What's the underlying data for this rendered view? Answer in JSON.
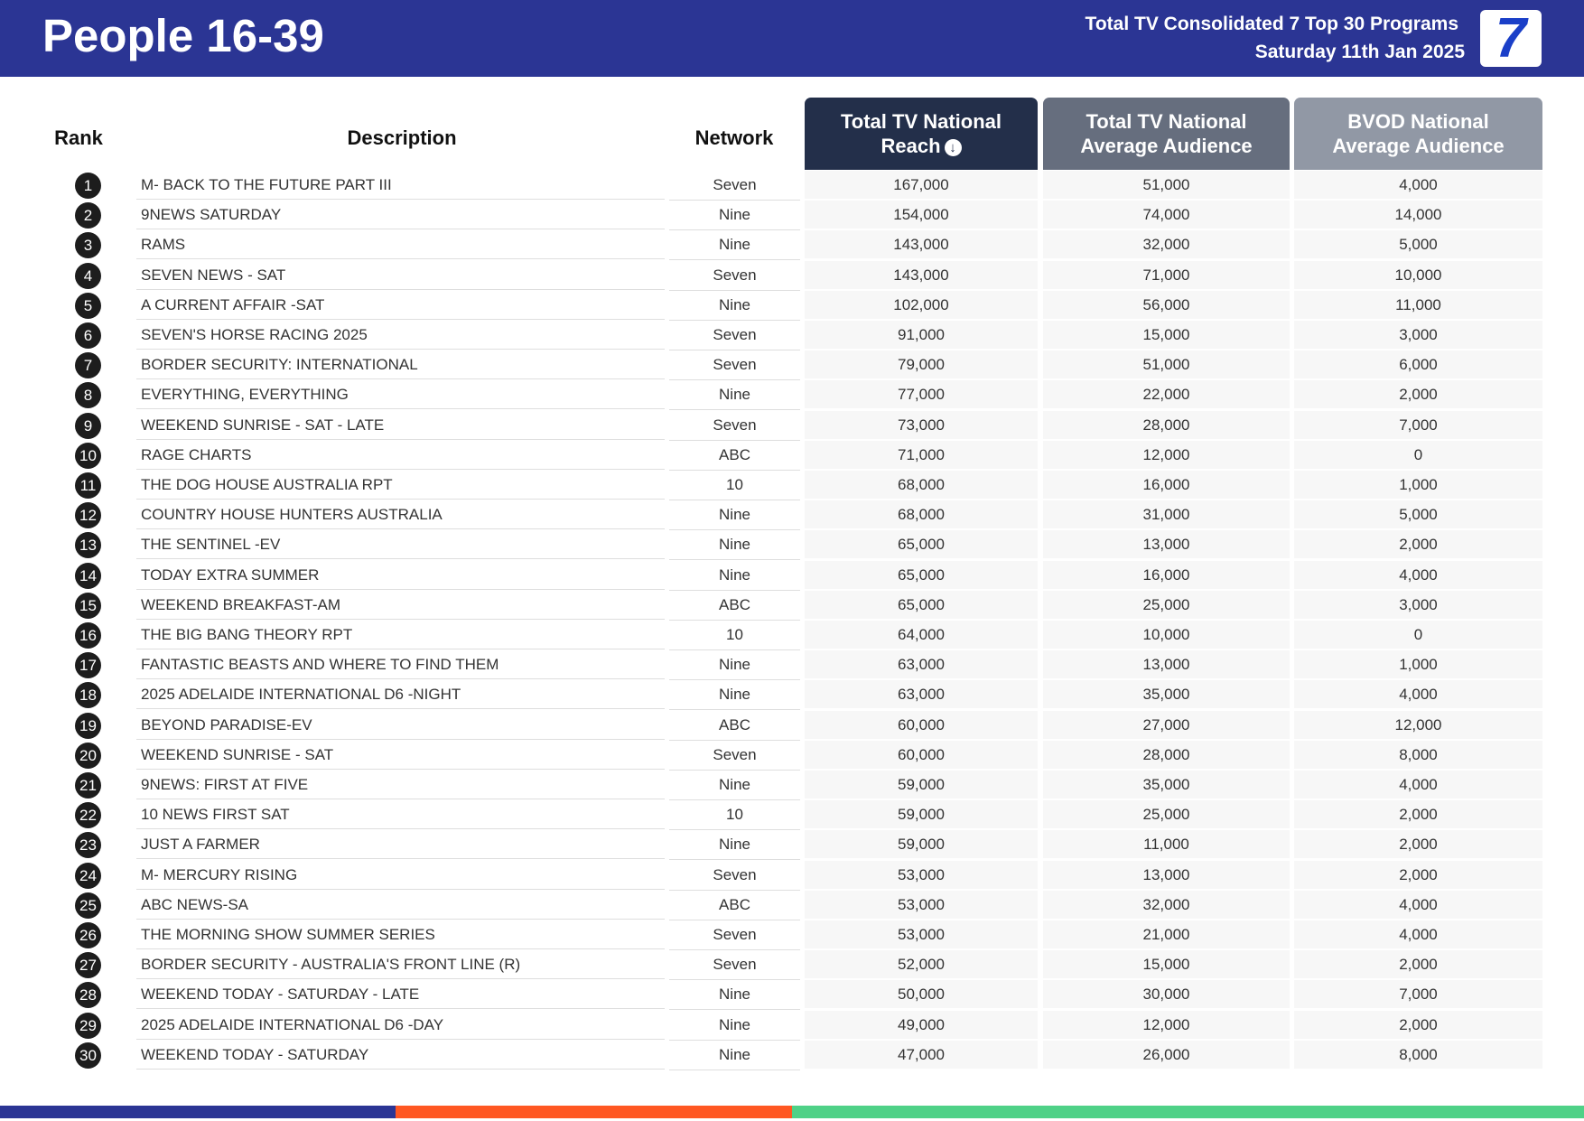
{
  "header": {
    "title": "People 16-39",
    "subtitle": "Total TV Consolidated 7 Top 30 Programs",
    "date": "Saturday 11th Jan 2025",
    "logo_text": "7"
  },
  "columns": {
    "rank": "Rank",
    "description": "Description",
    "network": "Network",
    "reach": "Total TV National Reach",
    "reach_line1": "Total TV National",
    "reach_line2": "Reach",
    "avg": "Total TV National Average Audience",
    "avg_line1": "Total TV National",
    "avg_line2": "Average Audience",
    "bvod_line1": "BVOD National",
    "bvod_line2": "Average Audience",
    "sort_icon": "arrow-down-circle-icon"
  },
  "colors": {
    "header_bg": "#2B3594",
    "reach_header": "#232F4A",
    "avg_header": "#666E7E",
    "bvod_header": "#9198A5",
    "footer_blue": "#2B3594",
    "footer_orange": "#FF5722",
    "footer_green": "#4FD187"
  },
  "rows": [
    {
      "rank": "1",
      "description": "M- BACK TO THE FUTURE PART III",
      "network": "Seven",
      "reach": "167,000",
      "avg": "51,000",
      "bvod": "4,000"
    },
    {
      "rank": "2",
      "description": "9NEWS SATURDAY",
      "network": "Nine",
      "reach": "154,000",
      "avg": "74,000",
      "bvod": "14,000"
    },
    {
      "rank": "3",
      "description": "RAMS",
      "network": "Nine",
      "reach": "143,000",
      "avg": "32,000",
      "bvod": "5,000"
    },
    {
      "rank": "4",
      "description": "SEVEN NEWS - SAT",
      "network": "Seven",
      "reach": "143,000",
      "avg": "71,000",
      "bvod": "10,000"
    },
    {
      "rank": "5",
      "description": "A CURRENT AFFAIR -SAT",
      "network": "Nine",
      "reach": "102,000",
      "avg": "56,000",
      "bvod": "11,000"
    },
    {
      "rank": "6",
      "description": "SEVEN'S HORSE RACING 2025",
      "network": "Seven",
      "reach": "91,000",
      "avg": "15,000",
      "bvod": "3,000"
    },
    {
      "rank": "7",
      "description": "BORDER SECURITY: INTERNATIONAL",
      "network": "Seven",
      "reach": "79,000",
      "avg": "51,000",
      "bvod": "6,000"
    },
    {
      "rank": "8",
      "description": "EVERYTHING, EVERYTHING",
      "network": "Nine",
      "reach": "77,000",
      "avg": "22,000",
      "bvod": "2,000"
    },
    {
      "rank": "9",
      "description": "WEEKEND SUNRISE - SAT - LATE",
      "network": "Seven",
      "reach": "73,000",
      "avg": "28,000",
      "bvod": "7,000"
    },
    {
      "rank": "10",
      "description": "RAGE CHARTS",
      "network": "ABC",
      "reach": "71,000",
      "avg": "12,000",
      "bvod": "0"
    },
    {
      "rank": "11",
      "description": "THE DOG HOUSE AUSTRALIA RPT",
      "network": "10",
      "reach": "68,000",
      "avg": "16,000",
      "bvod": "1,000"
    },
    {
      "rank": "12",
      "description": "COUNTRY HOUSE HUNTERS AUSTRALIA",
      "network": "Nine",
      "reach": "68,000",
      "avg": "31,000",
      "bvod": "5,000"
    },
    {
      "rank": "13",
      "description": "THE SENTINEL -EV",
      "network": "Nine",
      "reach": "65,000",
      "avg": "13,000",
      "bvod": "2,000"
    },
    {
      "rank": "14",
      "description": "TODAY EXTRA SUMMER",
      "network": "Nine",
      "reach": "65,000",
      "avg": "16,000",
      "bvod": "4,000"
    },
    {
      "rank": "15",
      "description": "WEEKEND BREAKFAST-AM",
      "network": "ABC",
      "reach": "65,000",
      "avg": "25,000",
      "bvod": "3,000"
    },
    {
      "rank": "16",
      "description": "THE BIG BANG THEORY RPT",
      "network": "10",
      "reach": "64,000",
      "avg": "10,000",
      "bvod": "0"
    },
    {
      "rank": "17",
      "description": "FANTASTIC BEASTS AND WHERE TO FIND THEM",
      "network": "Nine",
      "reach": "63,000",
      "avg": "13,000",
      "bvod": "1,000"
    },
    {
      "rank": "18",
      "description": "2025 ADELAIDE INTERNATIONAL D6 -NIGHT",
      "network": "Nine",
      "reach": "63,000",
      "avg": "35,000",
      "bvod": "4,000"
    },
    {
      "rank": "19",
      "description": "BEYOND PARADISE-EV",
      "network": "ABC",
      "reach": "60,000",
      "avg": "27,000",
      "bvod": "12,000"
    },
    {
      "rank": "20",
      "description": "WEEKEND SUNRISE - SAT",
      "network": "Seven",
      "reach": "60,000",
      "avg": "28,000",
      "bvod": "8,000"
    },
    {
      "rank": "21",
      "description": "9NEWS: FIRST AT FIVE",
      "network": "Nine",
      "reach": "59,000",
      "avg": "35,000",
      "bvod": "4,000"
    },
    {
      "rank": "22",
      "description": "10 NEWS FIRST SAT",
      "network": "10",
      "reach": "59,000",
      "avg": "25,000",
      "bvod": "2,000"
    },
    {
      "rank": "23",
      "description": "JUST A FARMER",
      "network": "Nine",
      "reach": "59,000",
      "avg": "11,000",
      "bvod": "2,000"
    },
    {
      "rank": "24",
      "description": "M- MERCURY RISING",
      "network": "Seven",
      "reach": "53,000",
      "avg": "13,000",
      "bvod": "2,000"
    },
    {
      "rank": "25",
      "description": "ABC NEWS-SA",
      "network": "ABC",
      "reach": "53,000",
      "avg": "32,000",
      "bvod": "4,000"
    },
    {
      "rank": "26",
      "description": "THE MORNING SHOW SUMMER SERIES",
      "network": "Seven",
      "reach": "53,000",
      "avg": "21,000",
      "bvod": "4,000"
    },
    {
      "rank": "27",
      "description": "BORDER SECURITY - AUSTRALIA'S FRONT LINE (R)",
      "network": "Seven",
      "reach": "52,000",
      "avg": "15,000",
      "bvod": "2,000"
    },
    {
      "rank": "28",
      "description": "WEEKEND TODAY - SATURDAY - LATE",
      "network": "Nine",
      "reach": "50,000",
      "avg": "30,000",
      "bvod": "7,000"
    },
    {
      "rank": "29",
      "description": "2025 ADELAIDE INTERNATIONAL D6 -DAY",
      "network": "Nine",
      "reach": "49,000",
      "avg": "12,000",
      "bvod": "2,000"
    },
    {
      "rank": "30",
      "description": "WEEKEND TODAY - SATURDAY",
      "network": "Nine",
      "reach": "47,000",
      "avg": "26,000",
      "bvod": "8,000"
    }
  ]
}
